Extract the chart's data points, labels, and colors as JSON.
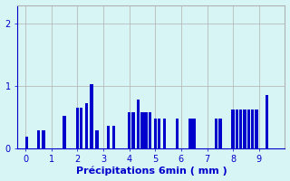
{
  "bar_color": "#0000cc",
  "background_color": "#d8f5f5",
  "xlabel": "Précipitations 6min ( mm )",
  "yticks": [
    0,
    1,
    2
  ],
  "xticks": [
    0,
    1,
    2,
    3,
    4,
    5,
    6,
    7,
    8,
    9
  ],
  "ylim": [
    0,
    2.3
  ],
  "xlim": [
    -0.3,
    10.0
  ],
  "grid_color": "#b0b0b0",
  "xlabel_color": "#0000cc",
  "tick_color": "#0000cc",
  "xlabel_fontsize": 8,
  "tick_fontsize": 7,
  "bar_width": 0.12,
  "bar_positions": [
    0.05,
    0.5,
    0.7,
    1.5,
    2.0,
    2.15,
    2.35,
    2.55,
    2.75,
    3.2,
    3.4,
    4.0,
    4.15,
    4.35,
    4.5,
    4.65,
    4.8,
    5.0,
    5.15,
    5.35,
    5.85,
    6.35,
    6.5,
    7.35,
    7.5,
    8.0,
    8.15,
    8.3,
    8.45,
    8.6,
    8.75,
    8.9,
    9.3
  ],
  "bar_heights": [
    0.18,
    0.28,
    0.28,
    0.52,
    0.65,
    0.65,
    0.72,
    1.02,
    0.28,
    0.35,
    0.35,
    0.58,
    0.58,
    0.78,
    0.58,
    0.58,
    0.58,
    0.48,
    0.48,
    0.48,
    0.48,
    0.48,
    0.48,
    0.48,
    0.48,
    0.62,
    0.62,
    0.62,
    0.62,
    0.62,
    0.62,
    0.62,
    0.85
  ]
}
